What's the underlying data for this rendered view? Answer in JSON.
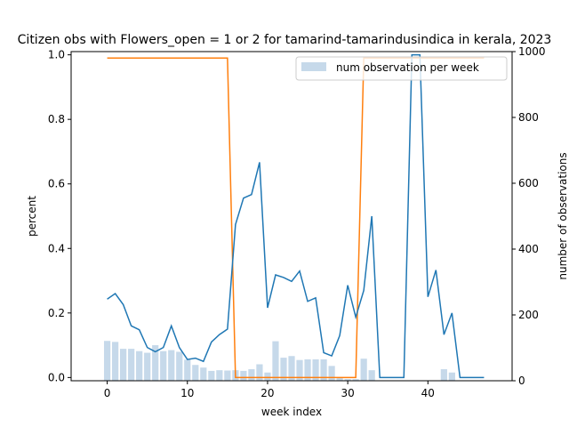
{
  "chart_data": {
    "type": "bar+line",
    "title": "Citizen obs with Flowers_open = 1 or 2 for tamarind-tamarindusindica in kerala, 2023",
    "xlabel": "week index",
    "ylabel_left": "percent",
    "ylabel_right": "number of observations",
    "xlim": [
      -4.5,
      50.5
    ],
    "ylim_left": [
      -0.01,
      1.01
    ],
    "ylim_right": [
      0,
      1000
    ],
    "xticks": [
      0,
      10,
      20,
      30,
      40
    ],
    "yticks_left": [
      "0.0",
      "0.2",
      "0.4",
      "0.6",
      "0.8",
      "1.0"
    ],
    "yticks_right": [
      "0",
      "200",
      "400",
      "600",
      "800",
      "1000"
    ],
    "legend": {
      "label": "num observation per week",
      "placement": "top-right"
    },
    "colors": {
      "bar": "#c6d9ea",
      "percent_line": "#1f77b4",
      "flag_line": "#ff7f0e"
    },
    "weeks": [
      0,
      1,
      2,
      3,
      4,
      5,
      6,
      7,
      8,
      9,
      10,
      11,
      12,
      13,
      14,
      15,
      16,
      17,
      18,
      19,
      20,
      21,
      22,
      23,
      24,
      25,
      26,
      27,
      28,
      29,
      30,
      31,
      32,
      33,
      34,
      35,
      36,
      37,
      38,
      39,
      40,
      41,
      42,
      43,
      44,
      45,
      46,
      47
    ],
    "bar_values": [
      121,
      118,
      97,
      97,
      90,
      85,
      108,
      90,
      93,
      88,
      64,
      48,
      40,
      30,
      32,
      31,
      32,
      30,
      35,
      50,
      25,
      120,
      70,
      75,
      63,
      65,
      65,
      65,
      45,
      10,
      5,
      5,
      67,
      32,
      0,
      0,
      0,
      0,
      0,
      0,
      0,
      0,
      35,
      25,
      0,
      0,
      0,
      0
    ],
    "percent_values": [
      0.243,
      0.26,
      0.226,
      0.16,
      0.148,
      0.093,
      0.08,
      0.093,
      0.16,
      0.093,
      0.056,
      0.06,
      0.05,
      0.11,
      0.133,
      0.15,
      0.474,
      0.556,
      0.567,
      0.667,
      0.216,
      0.318,
      0.31,
      0.298,
      0.33,
      0.236,
      0.247,
      0.077,
      0.067,
      0.13,
      0.286,
      0.187,
      0.27,
      0.5,
      0.0,
      0.0,
      0.0,
      0.0,
      1.0,
      1.0,
      0.25,
      0.333,
      0.133,
      0.2,
      0.0,
      0.0,
      0.0,
      0.0
    ],
    "flag_line_values": [
      0.99,
      0.99,
      0.99,
      0.99,
      0.99,
      0.99,
      0.99,
      0.99,
      0.99,
      0.99,
      0.99,
      0.99,
      0.99,
      0.99,
      0.99,
      0.99,
      0.0,
      0.0,
      0.0,
      0.0,
      0.0,
      0.0,
      0.0,
      0.0,
      0.0,
      0.0,
      0.0,
      0.0,
      0.0,
      0.0,
      0.0,
      0.0,
      0.99,
      0.99,
      0.99,
      0.99,
      0.99,
      0.99,
      0.99,
      0.99,
      0.99,
      0.99,
      0.99,
      0.99,
      0.99,
      0.99,
      0.99,
      0.99
    ]
  }
}
